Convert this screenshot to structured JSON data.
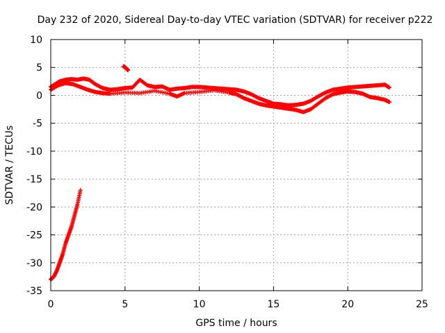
{
  "chart_data": {
    "type": "scatter",
    "title": "Day 232 of 2020, Sidereal Day-to-day VTEC variation (SDTVAR) for receiver p222",
    "xlabel": "GPS time / hours",
    "ylabel": "SDTVAR / TECUs",
    "xlim": [
      0,
      25
    ],
    "ylim": [
      -35,
      10
    ],
    "x_ticks": [
      0,
      5,
      10,
      15,
      20,
      25
    ],
    "y_ticks": [
      -35,
      -30,
      -25,
      -20,
      -15,
      -10,
      -5,
      0,
      5,
      10
    ],
    "grid": true,
    "marker": "plus",
    "color": "#ff0000",
    "series": [
      {
        "name": "upper-band",
        "x": [
          0.0,
          0.3,
          0.6,
          1.0,
          1.4,
          1.8,
          2.2,
          2.6,
          3.0,
          3.5,
          4.0,
          4.5,
          5.0,
          5.5,
          6.0,
          6.5,
          7.0,
          7.5,
          8.0,
          8.5,
          9.0,
          9.5,
          10.0,
          10.5,
          11.0,
          11.5,
          12.0,
          12.5,
          13.0,
          13.5,
          14.0,
          14.5,
          15.0,
          15.5,
          16.0,
          16.5,
          17.0,
          17.5,
          18.0,
          18.5,
          19.0,
          19.5,
          20.0,
          20.5,
          21.0,
          21.5,
          22.0,
          22.5,
          22.8
        ],
        "y": [
          1.5,
          2.0,
          2.5,
          2.8,
          2.9,
          2.8,
          3.0,
          2.8,
          2.0,
          1.3,
          1.0,
          1.1,
          1.3,
          1.4,
          2.8,
          1.8,
          1.5,
          1.6,
          1.0,
          1.2,
          1.3,
          1.5,
          1.5,
          1.4,
          1.3,
          1.2,
          1.1,
          1.0,
          0.7,
          0.2,
          -0.5,
          -1.0,
          -1.5,
          -1.6,
          -1.8,
          -1.7,
          -1.5,
          -1.0,
          -0.2,
          0.5,
          1.0,
          1.2,
          1.4,
          1.5,
          1.6,
          1.7,
          1.8,
          1.9,
          1.4
        ]
      },
      {
        "name": "lower-band",
        "x": [
          0.0,
          0.5,
          1.0,
          1.5,
          2.0,
          2.5,
          3.0,
          3.5,
          4.0,
          5.0,
          6.0,
          7.0,
          8.0,
          8.5,
          9.0,
          10.0,
          11.0,
          12.0,
          12.5,
          13.0,
          13.5,
          14.0,
          14.5,
          15.0,
          15.5,
          16.0,
          16.5,
          17.0,
          17.5,
          18.0,
          18.5,
          19.0,
          19.5,
          20.0,
          20.5,
          21.0,
          21.5,
          22.0,
          22.5,
          22.8
        ],
        "y": [
          1.0,
          1.8,
          2.2,
          2.0,
          1.5,
          1.0,
          0.6,
          0.4,
          0.3,
          0.5,
          0.4,
          0.8,
          0.3,
          -0.2,
          0.4,
          0.6,
          0.9,
          0.5,
          0.2,
          -0.5,
          -1.0,
          -1.5,
          -1.8,
          -2.0,
          -2.2,
          -2.4,
          -2.6,
          -3.0,
          -2.5,
          -1.5,
          -0.5,
          0.2,
          0.5,
          0.7,
          0.6,
          0.3,
          -0.3,
          -0.5,
          -0.8,
          -1.2
        ]
      },
      {
        "name": "isolated-points",
        "x": [
          4.9,
          5.0,
          5.1,
          5.2
        ],
        "y": [
          5.2,
          5.0,
          4.8,
          4.5
        ]
      },
      {
        "name": "steep-ramp",
        "x": [
          0.0,
          0.2,
          0.4,
          0.6,
          0.8,
          1.0,
          1.2,
          1.4,
          1.6,
          1.8,
          2.0
        ],
        "y": [
          -33.0,
          -32.5,
          -31.5,
          -30.0,
          -28.5,
          -26.5,
          -25.0,
          -23.5,
          -21.5,
          -19.5,
          -17.0
        ]
      }
    ]
  }
}
